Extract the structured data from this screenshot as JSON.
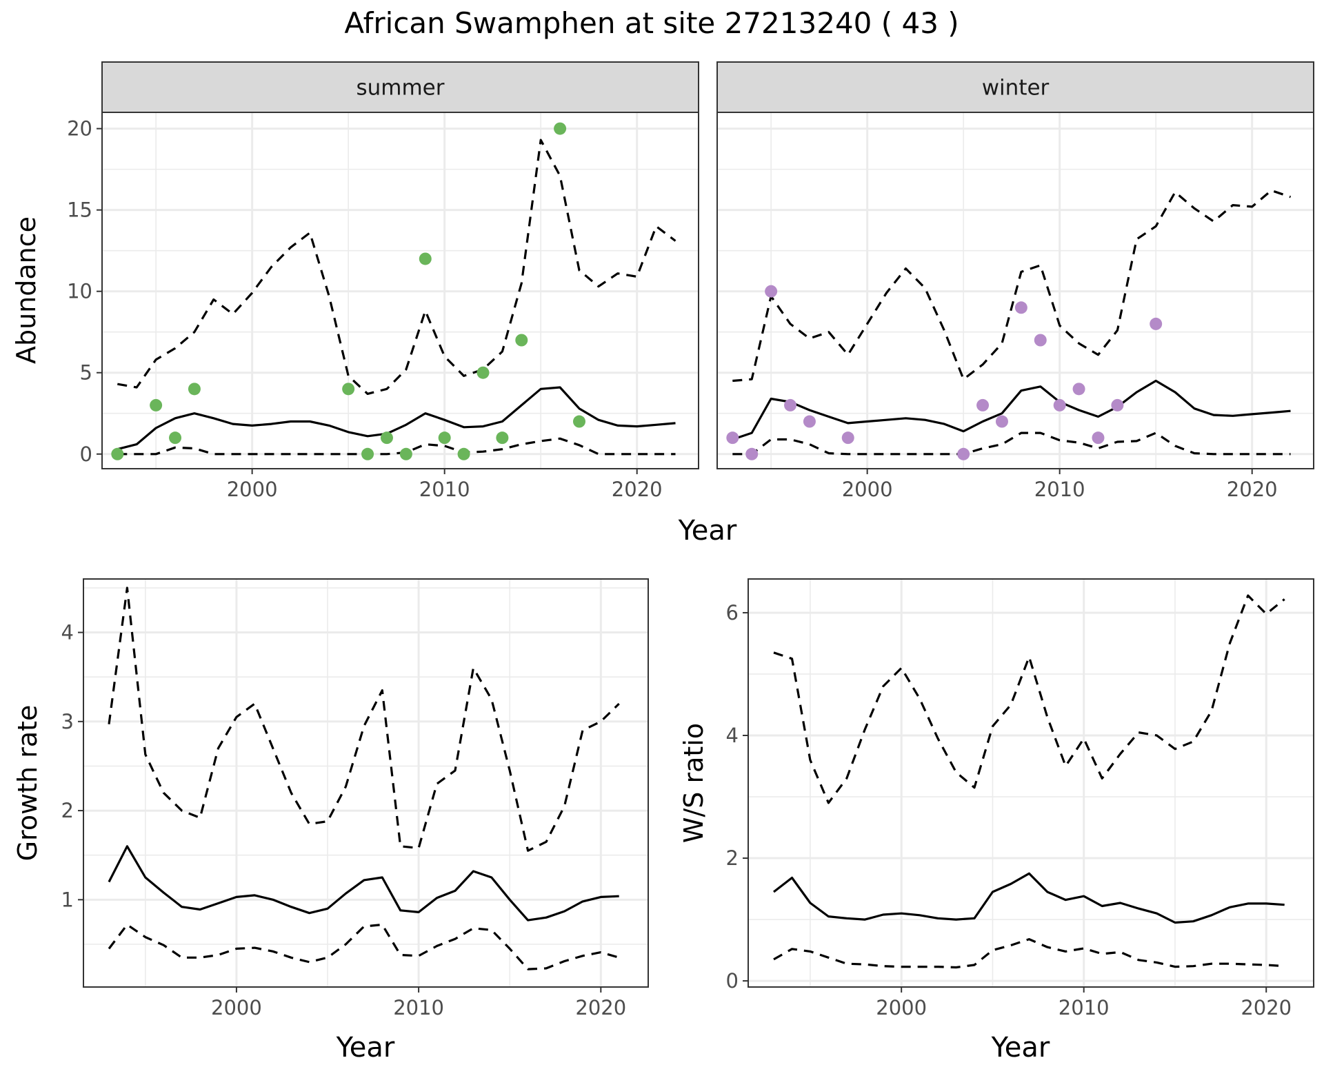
{
  "title": "African Swamphen at site 27213240 ( 43 )",
  "colors": {
    "summer_points": "#6ab55a",
    "winter_points": "#b48ac8",
    "line": "#000000",
    "grid": "#ebebeb",
    "strip": "#d9d9d9"
  },
  "chart_data": [
    {
      "type": "line",
      "panel": "summer",
      "strip_label": "summer",
      "xlabel": "Year",
      "ylabel": "Abundance",
      "xlim": [
        1992.2,
        2023.2
      ],
      "ylim": [
        -0.9,
        21.0
      ],
      "xticks": [
        2000,
        2010,
        2020
      ],
      "yticks": [
        0,
        5,
        10,
        15,
        20
      ],
      "grid": true,
      "x": [
        1993,
        1994,
        1995,
        1996,
        1997,
        1998,
        1999,
        2000,
        2001,
        2002,
        2003,
        2004,
        2005,
        2006,
        2007,
        2008,
        2009,
        2010,
        2011,
        2012,
        2013,
        2014,
        2015,
        2016,
        2017,
        2018,
        2019,
        2020,
        2021,
        2022
      ],
      "series": [
        {
          "style": "solid",
          "values": [
            0.3,
            0.6,
            1.6,
            2.2,
            2.5,
            2.2,
            1.85,
            1.75,
            1.85,
            2.0,
            2.0,
            1.75,
            1.35,
            1.1,
            1.25,
            1.8,
            2.5,
            2.1,
            1.65,
            1.7,
            2.0,
            3.0,
            4.0,
            4.1,
            2.8,
            2.1,
            1.75,
            1.7,
            1.8,
            1.9
          ]
        },
        {
          "style": "dashed",
          "values": [
            4.3,
            4.1,
            5.8,
            6.5,
            7.5,
            9.5,
            8.6,
            9.9,
            11.5,
            12.7,
            13.6,
            9.7,
            4.8,
            3.7,
            4.0,
            5.2,
            8.8,
            6.0,
            4.8,
            5.2,
            6.3,
            10.5,
            19.3,
            17.1,
            11.3,
            10.3,
            11.1,
            10.9,
            14.0,
            13.1
          ]
        },
        {
          "style": "dashed",
          "values": [
            0,
            0,
            0,
            0.4,
            0.35,
            0,
            0,
            0,
            0,
            0,
            0,
            0,
            0,
            0,
            0,
            0.1,
            0.6,
            0.5,
            0.1,
            0.15,
            0.3,
            0.6,
            0.8,
            0.95,
            0.55,
            0,
            0,
            0,
            0,
            0
          ]
        }
      ],
      "points": {
        "x": [
          1993,
          1995,
          1996,
          1997,
          2005,
          2006,
          2007,
          2008,
          2009,
          2010,
          2011,
          2012,
          2013,
          2014,
          2016,
          2017
        ],
        "y": [
          0,
          3,
          1,
          4,
          4,
          0,
          1,
          0,
          12,
          1,
          0,
          5,
          1,
          7,
          20,
          2
        ]
      }
    },
    {
      "type": "line",
      "panel": "winter",
      "strip_label": "winter",
      "xlabel": "Year",
      "ylabel": "Abundance",
      "xlim": [
        1992.2,
        2023.2
      ],
      "ylim": [
        -0.9,
        21.0
      ],
      "xticks": [
        2000,
        2010,
        2020
      ],
      "yticks": [
        0,
        5,
        10,
        15,
        20
      ],
      "grid": true,
      "x": [
        1993,
        1994,
        1995,
        1996,
        1997,
        1998,
        1999,
        2000,
        2001,
        2002,
        2003,
        2004,
        2005,
        2006,
        2007,
        2008,
        2009,
        2010,
        2011,
        2012,
        2013,
        2014,
        2015,
        2016,
        2017,
        2018,
        2019,
        2020,
        2021,
        2022
      ],
      "series": [
        {
          "style": "solid",
          "values": [
            0.9,
            1.3,
            3.4,
            3.2,
            2.7,
            2.3,
            1.9,
            2.0,
            2.1,
            2.2,
            2.1,
            1.85,
            1.4,
            2.0,
            2.5,
            3.9,
            4.15,
            3.2,
            2.7,
            2.3,
            2.9,
            3.8,
            4.5,
            3.8,
            2.8,
            2.4,
            2.35,
            2.45,
            2.55,
            2.65
          ]
        },
        {
          "style": "dashed",
          "values": [
            4.5,
            4.6,
            9.7,
            8.0,
            7.1,
            7.5,
            6.1,
            8.0,
            9.9,
            11.4,
            10.2,
            7.6,
            4.6,
            5.5,
            6.8,
            11.2,
            11.6,
            7.9,
            6.8,
            6.1,
            7.6,
            13.2,
            14.0,
            16.1,
            15.1,
            14.3,
            15.3,
            15.2,
            16.2,
            15.8
          ]
        },
        {
          "style": "dashed",
          "values": [
            0,
            0,
            0.9,
            0.9,
            0.6,
            0.05,
            0,
            0,
            0,
            0,
            0,
            0,
            0,
            0.35,
            0.6,
            1.3,
            1.3,
            0.85,
            0.7,
            0.35,
            0.75,
            0.8,
            1.3,
            0.5,
            0.05,
            0,
            0,
            0,
            0,
            0
          ]
        }
      ],
      "points": {
        "x": [
          1993,
          1994,
          1995,
          1996,
          1997,
          1999,
          2005,
          2006,
          2007,
          2008,
          2009,
          2010,
          2011,
          2012,
          2013,
          2015
        ],
        "y": [
          1,
          0,
          10,
          3,
          2,
          1,
          0,
          3,
          2,
          9,
          7,
          3,
          4,
          1,
          3,
          8
        ]
      }
    },
    {
      "type": "line",
      "panel": "growth",
      "xlabel": "Year",
      "ylabel": "Growth rate",
      "xlim": [
        1991.6,
        2022.6
      ],
      "ylim": [
        0.02,
        4.6
      ],
      "xticks": [
        2000,
        2010,
        2020
      ],
      "yticks": [
        1,
        2,
        3,
        4
      ],
      "grid": true,
      "x": [
        1993,
        1994,
        1995,
        1996,
        1997,
        1998,
        1999,
        2000,
        2001,
        2002,
        2003,
        2004,
        2005,
        2006,
        2007,
        2008,
        2009,
        2010,
        2011,
        2012,
        2013,
        2014,
        2015,
        2016,
        2017,
        2018,
        2019,
        2020,
        2021
      ],
      "series": [
        {
          "style": "solid",
          "values": [
            1.2,
            1.6,
            1.25,
            1.08,
            0.92,
            0.89,
            0.96,
            1.03,
            1.05,
            1.0,
            0.92,
            0.85,
            0.9,
            1.07,
            1.22,
            1.25,
            0.88,
            0.86,
            1.02,
            1.1,
            1.32,
            1.25,
            1.0,
            0.77,
            0.8,
            0.87,
            0.98,
            1.03,
            1.04
          ]
        },
        {
          "style": "dashed",
          "values": [
            2.97,
            4.5,
            2.63,
            2.2,
            2.0,
            1.92,
            2.7,
            3.05,
            3.2,
            2.7,
            2.2,
            1.85,
            1.88,
            2.27,
            2.95,
            3.35,
            1.6,
            1.58,
            2.3,
            2.45,
            3.6,
            3.25,
            2.45,
            1.55,
            1.65,
            2.05,
            2.9,
            3.0,
            3.2
          ]
        },
        {
          "style": "dashed",
          "values": [
            0.45,
            0.72,
            0.58,
            0.49,
            0.35,
            0.35,
            0.38,
            0.45,
            0.46,
            0.42,
            0.35,
            0.3,
            0.35,
            0.5,
            0.7,
            0.72,
            0.38,
            0.37,
            0.48,
            0.56,
            0.68,
            0.66,
            0.45,
            0.22,
            0.23,
            0.31,
            0.37,
            0.41,
            0.35
          ]
        }
      ]
    },
    {
      "type": "line",
      "panel": "ratio",
      "xlabel": "Year",
      "ylabel": "W/S ratio",
      "xlim": [
        1991.6,
        2022.6
      ],
      "ylim": [
        -0.1,
        6.55
      ],
      "xticks": [
        2000,
        2010,
        2020
      ],
      "yticks": [
        0,
        2,
        4,
        6
      ],
      "grid": true,
      "x": [
        1993,
        1994,
        1995,
        1996,
        1997,
        1998,
        1999,
        2000,
        2001,
        2002,
        2003,
        2004,
        2005,
        2006,
        2007,
        2008,
        2009,
        2010,
        2011,
        2012,
        2013,
        2014,
        2015,
        2016,
        2017,
        2018,
        2019,
        2020,
        2021
      ],
      "series": [
        {
          "style": "solid",
          "values": [
            1.45,
            1.68,
            1.27,
            1.05,
            1.02,
            1.0,
            1.08,
            1.1,
            1.07,
            1.02,
            1.0,
            1.02,
            1.45,
            1.58,
            1.75,
            1.45,
            1.32,
            1.38,
            1.22,
            1.27,
            1.18,
            1.1,
            0.95,
            0.97,
            1.07,
            1.2,
            1.26,
            1.26,
            1.24
          ]
        },
        {
          "style": "dashed",
          "values": [
            5.35,
            5.25,
            3.6,
            2.9,
            3.3,
            4.1,
            4.8,
            5.1,
            4.6,
            3.95,
            3.4,
            3.15,
            4.15,
            4.5,
            5.28,
            4.3,
            3.5,
            3.95,
            3.3,
            3.7,
            4.05,
            4.0,
            3.78,
            3.9,
            4.4,
            5.5,
            6.28,
            5.98,
            6.22
          ]
        },
        {
          "style": "dashed",
          "values": [
            0.35,
            0.52,
            0.48,
            0.38,
            0.28,
            0.27,
            0.24,
            0.23,
            0.23,
            0.23,
            0.22,
            0.26,
            0.5,
            0.58,
            0.68,
            0.55,
            0.48,
            0.53,
            0.44,
            0.47,
            0.34,
            0.3,
            0.23,
            0.24,
            0.28,
            0.28,
            0.27,
            0.26,
            0.24
          ]
        }
      ]
    }
  ]
}
